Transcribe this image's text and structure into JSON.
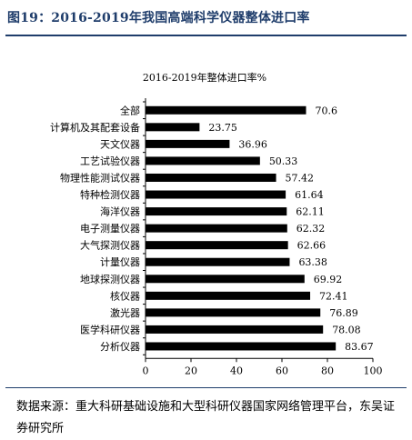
{
  "figure_title": "图19：2016-2019年我国高端科学仪器整体进口率",
  "source_text": "数据来源：重大科研基础设施和大型科研仪器国家网络管理平台，东吴证券研究所",
  "colors": {
    "bar": "#000000",
    "title": "#1f3d6b",
    "rule": "#1f3d6b"
  },
  "chart_data": {
    "type": "bar",
    "orientation": "horizontal",
    "title": "2016-2019年整体进口率%",
    "categories": [
      "全部",
      "计算机及其配套设备",
      "天文仪器",
      "工艺试验仪器",
      "物理性能测试仪器",
      "特种检测仪器",
      "海洋仪器",
      "电子测量仪器",
      "大气探测仪器",
      "计量仪器",
      "地球探测仪器",
      "核仪器",
      "激光器",
      "医学科研仪器",
      "分析仪器"
    ],
    "values": [
      70.6,
      23.75,
      36.96,
      50.33,
      57.42,
      61.64,
      62.11,
      62.32,
      62.66,
      63.38,
      69.92,
      72.41,
      76.89,
      78.08,
      83.67
    ],
    "value_labels": [
      "70.6",
      "23.75",
      "36.96",
      "50.33",
      "57.42",
      "61.64",
      "62.11",
      "62.32",
      "62.66",
      "63.38",
      "69.92",
      "72.41",
      "76.89",
      "78.08",
      "83.67"
    ],
    "xlim": [
      0,
      100
    ],
    "xticks": [
      0,
      20,
      40,
      60,
      80,
      100
    ],
    "xtick_labels": [
      "0",
      "20",
      "40",
      "60",
      "80",
      "100"
    ],
    "grid": false,
    "legend": "none"
  }
}
